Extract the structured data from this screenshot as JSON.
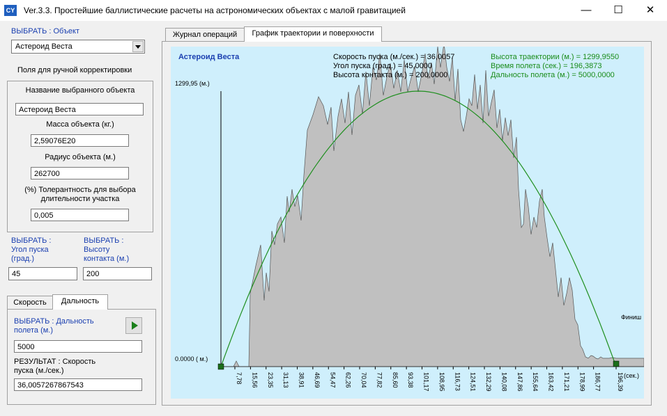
{
  "window": {
    "icon_text": "CY",
    "title": "Ver.3.3.  Простейшие баллистические расчеты на астрономических объектах с малой гравитацией",
    "min_symbol": "—",
    "max_symbol": "☐",
    "close_symbol": "✕"
  },
  "left": {
    "select_object_label": "ВЫБРАТЬ : Объект",
    "object_value": "Астероид Веста",
    "manual_fields_label": "Поля для ручной корректировки",
    "name_label": "Название выбранного объекта",
    "name_value": "Астероид Веста",
    "mass_label": "Масса объекта (кг.)",
    "mass_value": "2,59076E20",
    "radius_label": "Радиус объекта (м.)",
    "radius_value": "262700",
    "tolerance_label_1": "(%) Толерантность для выбора",
    "tolerance_label_2": "длительности участка",
    "tolerance_value": "0,005",
    "angle_label_1": "ВЫБРАТЬ :",
    "angle_label_2": "Угол пуска",
    "angle_label_3": "(град.)",
    "angle_value": "45",
    "height_label_1": "ВЫБРАТЬ :",
    "height_label_2": "Высоту",
    "height_label_3": "контакта (м.)",
    "height_value": "200",
    "tabs": [
      "Скорость",
      "Дальность"
    ],
    "range_label_1": "ВЫБРАТЬ : Дальность",
    "range_label_2": "полета (м.)",
    "range_value": "5000",
    "result_label_1": "РЕЗУЛЬТАТ : Скорость",
    "result_label_2": "пуска  (м./сек.)",
    "result_value": "36,0057267867543"
  },
  "right_tabs": [
    "Журнал операций",
    "График траектории и поверхности"
  ],
  "plot": {
    "object_title": "Астероид Веста",
    "speed_line": "Скорость пуска (м./сек.) = 36,0057",
    "angle_line": "Угол пуска (град.) = 45,0000",
    "contact_line": "Высота контакта (м.) = 200,0000",
    "height_line": "Высота траектории (м.) = 1299,9550",
    "time_line": "Время полета (сек.) = 196,3873",
    "distance_line": "Дальность полета (м.) = 5000,0000",
    "y_max_label": "1299,95 (м.)",
    "y_min_label": "0.0000 ( м.)",
    "finish_label": "Финиш",
    "x_unit": "(сек.)",
    "colors": {
      "trajectory": "#1f8f1f",
      "surface": "#c0c0c0",
      "background": "#cfeffc",
      "marker": "#1a6e1a"
    }
  },
  "chart_data": {
    "type": "line",
    "xlabel": "(сек.)",
    "ylim": [
      0,
      1299.95
    ],
    "x_ticks": [
      "7,78",
      "15,56",
      "23,35",
      "31,13",
      "38,91",
      "46,69",
      "54,47",
      "62,26",
      "70,04",
      "77,82",
      "85,60",
      "93,38",
      "101,17",
      "108,95",
      "116,73",
      "124,51",
      "132,29",
      "140,08",
      "147,86",
      "155,64",
      "163,42",
      "171,21",
      "178,99",
      "186,77",
      "196,39"
    ],
    "series": [
      {
        "name": "",
        "x": [
          0,
          49.1,
          98.2,
          147.3,
          196.39
        ],
        "y": [
          0,
          975,
          1299.95,
          975,
          0
        ]
      }
    ]
  }
}
